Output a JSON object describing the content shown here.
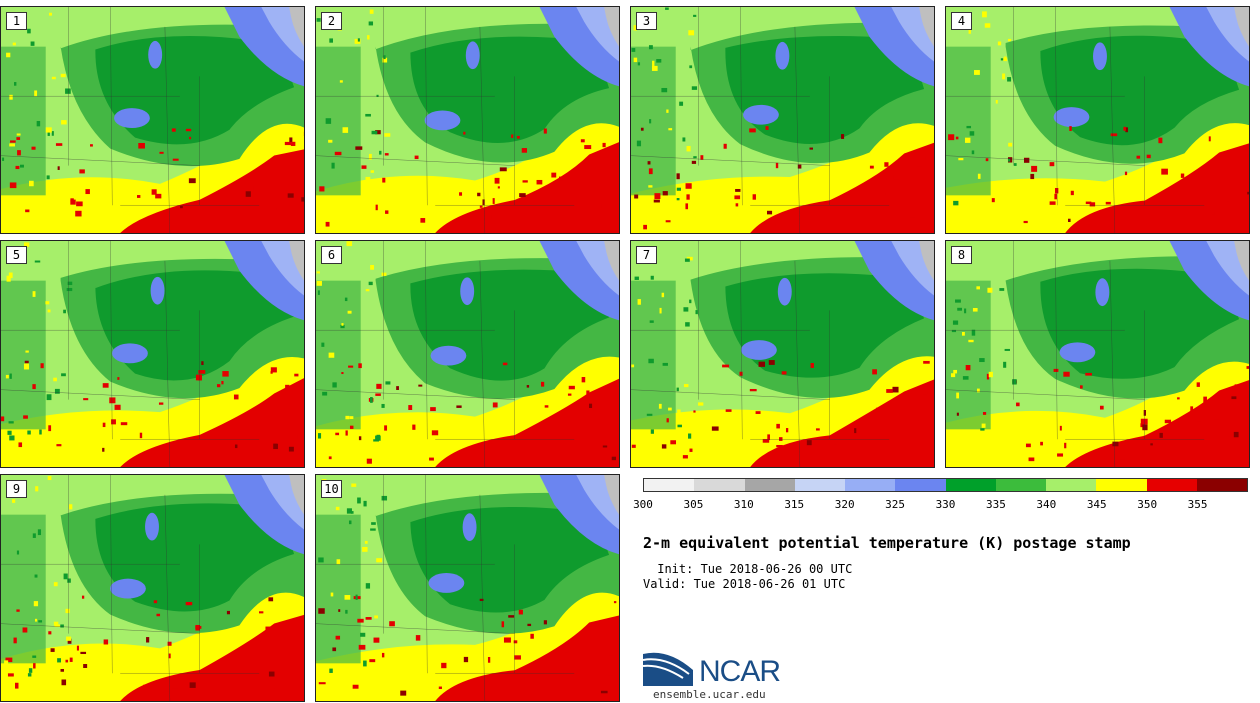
{
  "panels": [
    {
      "label": "1"
    },
    {
      "label": "2"
    },
    {
      "label": "3"
    },
    {
      "label": "4"
    },
    {
      "label": "5"
    },
    {
      "label": "6"
    },
    {
      "label": "7"
    },
    {
      "label": "8"
    },
    {
      "label": "9"
    },
    {
      "label": "10"
    }
  ],
  "colorbar": {
    "ticks": [
      "300",
      "305",
      "310",
      "315",
      "320",
      "325",
      "330",
      "335",
      "340",
      "345",
      "350",
      "355"
    ],
    "colors": [
      "#f2f2f2",
      "#d9d9d9",
      "#a6a6a6",
      "#c6d4f5",
      "#97aef5",
      "#6b85f0",
      "#00a02a",
      "#3cbc3c",
      "#a6ef6a",
      "#ffff00",
      "#e60000",
      "#8b0000"
    ]
  },
  "map_colors": {
    "dark_green": "#0f9b2d",
    "mid_green": "#44b744",
    "light_green": "#a6ef6a",
    "yellow": "#ffff00",
    "red": "#e30000",
    "dark_red": "#8b0000",
    "blue": "#6b85f0",
    "light_blue": "#9fb3f5",
    "gray": "#bfbfbf"
  },
  "title": "2-m equivalent potential temperature (K) postage stamp",
  "init": " Init: Tue 2018-06-26 00 UTC",
  "valid": "Valid: Tue 2018-06-26 01 UTC",
  "logo": {
    "text": "NCAR",
    "url_text": "ensemble.ucar.edu"
  }
}
